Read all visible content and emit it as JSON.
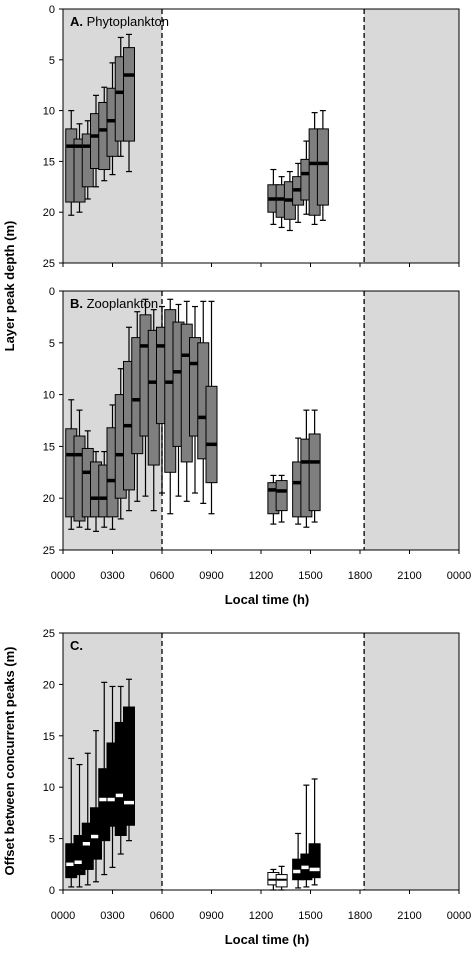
{
  "chart_data": [
    {
      "type": "box",
      "panel_letter": "A.",
      "title": "Phytoplankton",
      "ylabel": "",
      "ylim": [
        0,
        25
      ],
      "y_inverted": true,
      "yticks": [
        "0",
        "5",
        "10",
        "15",
        "20",
        "25"
      ],
      "xlim": [
        0,
        24
      ],
      "night_shading": [
        [
          0,
          6
        ],
        [
          18.25,
          24
        ]
      ],
      "dashed_lines": [
        6,
        18.25
      ],
      "box_color": "#7f7f7f",
      "boxes": [
        {
          "x": 0.5,
          "whisker_low": 10.0,
          "q1": 11.8,
          "median": 13.5,
          "q3": 19.0,
          "whisker_high": 20.3
        },
        {
          "x": 1.0,
          "whisker_low": 11.3,
          "q1": 12.8,
          "median": 13.5,
          "q3": 19.0,
          "whisker_high": 20.0
        },
        {
          "x": 1.5,
          "whisker_low": 11.0,
          "q1": 12.3,
          "median": 13.5,
          "q3": 17.5,
          "whisker_high": 18.7
        },
        {
          "x": 2.0,
          "whisker_low": 8.5,
          "q1": 10.3,
          "median": 12.5,
          "q3": 15.7,
          "whisker_high": 17.5
        },
        {
          "x": 2.5,
          "whisker_low": 7.7,
          "q1": 9.2,
          "median": 11.9,
          "q3": 15.8,
          "whisker_high": 16.9
        },
        {
          "x": 3.0,
          "whisker_low": 5.3,
          "q1": 7.8,
          "median": 11.0,
          "q3": 14.5,
          "whisker_high": 16.3
        },
        {
          "x": 3.5,
          "whisker_low": 2.8,
          "q1": 4.7,
          "median": 8.2,
          "q3": 13.0,
          "whisker_high": 14.5
        },
        {
          "x": 4.0,
          "whisker_low": 2.5,
          "q1": 3.8,
          "median": 6.5,
          "q3": 13.0,
          "whisker_high": 16.0
        },
        {
          "x": 12.75,
          "whisker_low": 15.8,
          "q1": 17.3,
          "median": 18.7,
          "q3": 20.0,
          "whisker_high": 21.2
        },
        {
          "x": 13.25,
          "whisker_low": 16.5,
          "q1": 17.3,
          "median": 18.7,
          "q3": 20.5,
          "whisker_high": 21.5
        },
        {
          "x": 13.75,
          "whisker_low": 16.0,
          "q1": 17.0,
          "median": 18.8,
          "q3": 20.7,
          "whisker_high": 21.8
        },
        {
          "x": 14.25,
          "whisker_low": 15.2,
          "q1": 16.5,
          "median": 17.8,
          "q3": 19.3,
          "whisker_high": 21.0
        },
        {
          "x": 14.75,
          "whisker_low": 13.0,
          "q1": 14.8,
          "median": 16.2,
          "q3": 18.8,
          "whisker_high": 20.2
        },
        {
          "x": 15.25,
          "whisker_low": 10.2,
          "q1": 11.8,
          "median": 15.2,
          "q3": 20.3,
          "whisker_high": 21.2
        },
        {
          "x": 15.75,
          "whisker_low": 10.0,
          "q1": 11.8,
          "median": 15.2,
          "q3": 19.3,
          "whisker_high": 20.8
        }
      ]
    },
    {
      "type": "box",
      "panel_letter": "B.",
      "title": "Zooplankton",
      "ylabel": "Layer peak depth (m)",
      "ylim": [
        0,
        25
      ],
      "y_inverted": true,
      "yticks": [
        "0",
        "5",
        "10",
        "15",
        "20",
        "25"
      ],
      "xlabel": "Local time (h)",
      "xlim": [
        0,
        24
      ],
      "xticks": [
        {
          "x": 0,
          "label": "0000"
        },
        {
          "x": 3,
          "label": "0300"
        },
        {
          "x": 6,
          "label": "0600"
        },
        {
          "x": 9,
          "label": "0900"
        },
        {
          "x": 12,
          "label": "1200"
        },
        {
          "x": 15,
          "label": "1500"
        },
        {
          "x": 18,
          "label": "1800"
        },
        {
          "x": 21,
          "label": "2100"
        },
        {
          "x": 24,
          "label": "0000"
        }
      ],
      "night_shading": [
        [
          0,
          6
        ],
        [
          18.25,
          24
        ]
      ],
      "dashed_lines": [
        6,
        18.25
      ],
      "box_color": "#7f7f7f",
      "boxes": [
        {
          "x": 0.5,
          "whisker_low": 10.5,
          "q1": 13.3,
          "median": 15.8,
          "q3": 21.8,
          "whisker_high": 23.0
        },
        {
          "x": 1.0,
          "whisker_low": 11.5,
          "q1": 14.0,
          "median": 15.8,
          "q3": 22.2,
          "whisker_high": 22.8
        },
        {
          "x": 1.5,
          "whisker_low": 13.5,
          "q1": 15.2,
          "median": 17.5,
          "q3": 21.8,
          "whisker_high": 23.0
        },
        {
          "x": 2.0,
          "whisker_low": 15.5,
          "q1": 16.5,
          "median": 20.0,
          "q3": 21.8,
          "whisker_high": 23.2
        },
        {
          "x": 2.5,
          "whisker_low": 15.5,
          "q1": 16.8,
          "median": 20.0,
          "q3": 21.8,
          "whisker_high": 22.8
        },
        {
          "x": 3.0,
          "whisker_low": 11.0,
          "q1": 13.2,
          "median": 18.3,
          "q3": 21.8,
          "whisker_high": 23.0
        },
        {
          "x": 3.5,
          "whisker_low": 7.5,
          "q1": 10.0,
          "median": 15.8,
          "q3": 20.0,
          "whisker_high": 22.0
        },
        {
          "x": 4.0,
          "whisker_low": 3.5,
          "q1": 6.8,
          "median": 13.0,
          "q3": 19.2,
          "whisker_high": 21.2
        },
        {
          "x": 4.5,
          "whisker_low": 2.0,
          "q1": 4.5,
          "median": 10.5,
          "q3": 15.7,
          "whisker_high": 20.3
        },
        {
          "x": 5.0,
          "whisker_low": 0.8,
          "q1": 2.3,
          "median": 5.3,
          "q3": 14.0,
          "whisker_high": 19.8
        },
        {
          "x": 5.5,
          "whisker_low": 1.8,
          "q1": 3.8,
          "median": 8.8,
          "q3": 16.8,
          "whisker_high": 21.2
        },
        {
          "x": 6.0,
          "whisker_low": 1.5,
          "q1": 3.5,
          "median": 5.3,
          "q3": 12.8,
          "whisker_high": 19.5
        },
        {
          "x": 6.5,
          "whisker_low": 0.8,
          "q1": 1.8,
          "median": 8.8,
          "q3": 17.5,
          "whisker_high": 21.5
        },
        {
          "x": 7.0,
          "whisker_low": 1.3,
          "q1": 3.0,
          "median": 7.8,
          "q3": 15.0,
          "whisker_high": 19.8
        },
        {
          "x": 7.5,
          "whisker_low": 1.0,
          "q1": 3.2,
          "median": 6.2,
          "q3": 16.5,
          "whisker_high": 20.3
        },
        {
          "x": 8.0,
          "whisker_low": 1.5,
          "q1": 4.5,
          "median": 7.0,
          "q3": 14.0,
          "whisker_high": 19.5
        },
        {
          "x": 8.5,
          "whisker_low": 1.0,
          "q1": 5.0,
          "median": 12.2,
          "q3": 16.2,
          "whisker_high": 20.5
        },
        {
          "x": 9.0,
          "whisker_low": 1.0,
          "q1": 9.2,
          "median": 14.8,
          "q3": 18.5,
          "whisker_high": 21.5
        },
        {
          "x": 12.75,
          "whisker_low": 17.8,
          "q1": 18.5,
          "median": 19.2,
          "q3": 21.5,
          "whisker_high": 22.5
        },
        {
          "x": 13.25,
          "whisker_low": 17.8,
          "q1": 18.3,
          "median": 19.3,
          "q3": 21.2,
          "whisker_high": 22.3
        },
        {
          "x": 14.25,
          "whisker_low": 14.2,
          "q1": 16.5,
          "median": 18.5,
          "q3": 21.8,
          "whisker_high": 22.5
        },
        {
          "x": 14.75,
          "whisker_low": 11.5,
          "q1": 14.3,
          "median": 16.5,
          "q3": 21.8,
          "whisker_high": 22.8
        },
        {
          "x": 15.25,
          "whisker_low": 11.5,
          "q1": 13.8,
          "median": 16.5,
          "q3": 21.2,
          "whisker_high": 22.3
        }
      ]
    },
    {
      "type": "box",
      "panel_letter": "C.",
      "title": "",
      "ylabel": "Offset between concurrent peaks (m)",
      "ylim": [
        0,
        25
      ],
      "y_inverted": false,
      "yticks": [
        "0",
        "5",
        "10",
        "15",
        "20",
        "25"
      ],
      "xlabel": "Local time (h)",
      "xlim": [
        0,
        24
      ],
      "xticks": [
        {
          "x": 0,
          "label": "0000"
        },
        {
          "x": 3,
          "label": "0300"
        },
        {
          "x": 6,
          "label": "0600"
        },
        {
          "x": 9,
          "label": "0900"
        },
        {
          "x": 12,
          "label": "1200"
        },
        {
          "x": 15,
          "label": "1500"
        },
        {
          "x": 18,
          "label": "1800"
        },
        {
          "x": 21,
          "label": "2100"
        },
        {
          "x": 24,
          "label": "0000"
        }
      ],
      "night_shading": [
        [
          0,
          6
        ],
        [
          18.25,
          24
        ]
      ],
      "dashed_lines": [
        6,
        18.25
      ],
      "box_color": "#000000",
      "open_box_color": "#ffffff",
      "boxes": [
        {
          "x": 0.5,
          "whisker_low": 0.3,
          "q1": 1.2,
          "median": 2.5,
          "q3": 4.5,
          "whisker_high": 12.8
        },
        {
          "x": 1.0,
          "whisker_low": 0.3,
          "q1": 1.5,
          "median": 2.7,
          "q3": 5.3,
          "whisker_high": 12.2
        },
        {
          "x": 1.5,
          "whisker_low": 0.5,
          "q1": 2.0,
          "median": 4.5,
          "q3": 6.5,
          "whisker_high": 13.3
        },
        {
          "x": 2.0,
          "whisker_low": 0.8,
          "q1": 3.0,
          "median": 5.2,
          "q3": 8.0,
          "whisker_high": 15.5
        },
        {
          "x": 2.5,
          "whisker_low": 1.5,
          "q1": 4.8,
          "median": 8.8,
          "q3": 11.8,
          "whisker_high": 20.2
        },
        {
          "x": 3.0,
          "whisker_low": 2.2,
          "q1": 6.2,
          "median": 8.8,
          "q3": 14.3,
          "whisker_high": 19.8
        },
        {
          "x": 3.5,
          "whisker_low": 3.5,
          "q1": 5.3,
          "median": 9.2,
          "q3": 16.3,
          "whisker_high": 19.8
        },
        {
          "x": 4.0,
          "whisker_low": 4.8,
          "q1": 6.3,
          "median": 8.5,
          "q3": 17.8,
          "whisker_high": 20.5
        },
        {
          "x": 12.75,
          "whisker_low": 0.0,
          "q1": 0.5,
          "median": 1.0,
          "q3": 1.7,
          "whisker_high": 2.0,
          "open": true
        },
        {
          "x": 13.25,
          "whisker_low": 0.0,
          "q1": 0.3,
          "median": 1.0,
          "q3": 1.5,
          "whisker_high": 2.3,
          "open": true
        },
        {
          "x": 14.25,
          "whisker_low": 0.2,
          "q1": 1.0,
          "median": 1.8,
          "q3": 3.0,
          "whisker_high": 5.5
        },
        {
          "x": 14.75,
          "whisker_low": 0.3,
          "q1": 1.0,
          "median": 2.2,
          "q3": 3.5,
          "whisker_high": 10.2
        },
        {
          "x": 15.25,
          "whisker_low": 0.5,
          "q1": 1.2,
          "median": 2.0,
          "q3": 4.5,
          "whisker_high": 10.8
        }
      ]
    }
  ]
}
